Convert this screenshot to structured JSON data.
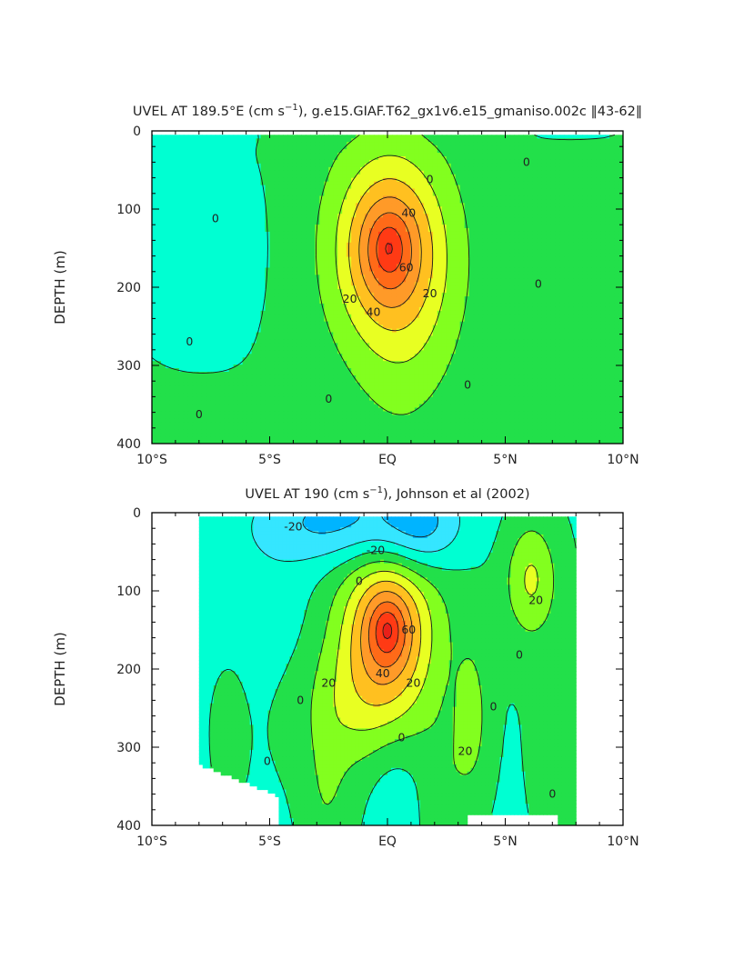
{
  "chart_data": [
    {
      "type": "contour",
      "title_parts": {
        "prefix": "UVEL AT 189.5°E (cm s",
        "sup": "−1",
        "suffix": "), g.e15.GIAF.T62_gx1v6.e15_gmaniso.002c ‖43-62‖"
      },
      "xlabel": "",
      "ylabel": "DEPTH (m)",
      "xlim": [
        -10,
        10
      ],
      "ylim": [
        400,
        0
      ],
      "xticks": [
        -10,
        -5,
        0,
        5,
        10
      ],
      "xtick_labels": [
        "10°S",
        "5°S",
        "EQ",
        "5°N",
        "10°N"
      ],
      "yticks": [
        0,
        100,
        200,
        300,
        400
      ],
      "ytick_labels": [
        "0",
        "100",
        "200",
        "300",
        "400"
      ],
      "contour_interval": 10,
      "data_extent": {
        "lon": [
          -10,
          10
        ],
        "depth": [
          5,
          400
        ]
      },
      "features": [
        {
          "kind": "undercurrent-core",
          "lon": 0.05,
          "depth": 150,
          "max": 68
        }
      ],
      "contour_labels": [
        {
          "text": "0",
          "lon": -7.3,
          "depth": 112
        },
        {
          "text": "0",
          "lon": 1.8,
          "depth": 62
        },
        {
          "text": "0",
          "lon": 5.9,
          "depth": 40
        },
        {
          "text": "0",
          "lon": 6.4,
          "depth": 196
        },
        {
          "text": "0",
          "lon": -2.5,
          "depth": 343
        },
        {
          "text": "0",
          "lon": -8.4,
          "depth": 270
        },
        {
          "text": "0",
          "lon": -8.0,
          "depth": 363
        },
        {
          "text": "0",
          "lon": 3.4,
          "depth": 325
        },
        {
          "text": "20",
          "lon": -1.6,
          "depth": 215
        },
        {
          "text": "20",
          "lon": 1.8,
          "depth": 208
        },
        {
          "text": "40",
          "lon": 0.9,
          "depth": 105
        },
        {
          "text": "40",
          "lon": -0.6,
          "depth": 232
        },
        {
          "text": "60",
          "lon": 0.8,
          "depth": 175
        }
      ]
    },
    {
      "type": "contour",
      "title_parts": {
        "prefix": "UVEL AT 190 (cm s",
        "sup": "−1",
        "suffix": "), Johnson et al (2002)"
      },
      "xlabel": "",
      "ylabel": "DEPTH (m)",
      "xlim": [
        -10,
        10
      ],
      "ylim": [
        400,
        0
      ],
      "xticks": [
        -10,
        -5,
        0,
        5,
        10
      ],
      "xtick_labels": [
        "10°S",
        "5°S",
        "EQ",
        "5°N",
        "10°N"
      ],
      "yticks": [
        0,
        100,
        200,
        300,
        400
      ],
      "ytick_labels": [
        "0",
        "100",
        "200",
        "300",
        "400"
      ],
      "contour_interval": 10,
      "data_extent": {
        "lon": [
          -8,
          8
        ],
        "depth": [
          5,
          400
        ]
      },
      "features": [
        {
          "kind": "undercurrent-core",
          "lon": 0.0,
          "depth": 150,
          "max": 74
        }
      ],
      "contour_labels": [
        {
          "text": "-20",
          "lon": -4.0,
          "depth": 18
        },
        {
          "text": "-20",
          "lon": -0.5,
          "depth": 48
        },
        {
          "text": "0",
          "lon": -1.2,
          "depth": 88
        },
        {
          "text": "0",
          "lon": -3.7,
          "depth": 240
        },
        {
          "text": "0",
          "lon": 4.5,
          "depth": 248
        },
        {
          "text": "0",
          "lon": 5.6,
          "depth": 182
        },
        {
          "text": "0",
          "lon": -5.1,
          "depth": 318
        },
        {
          "text": "0",
          "lon": 0.6,
          "depth": 288
        },
        {
          "text": "0",
          "lon": 7.0,
          "depth": 360
        },
        {
          "text": "20",
          "lon": -2.5,
          "depth": 218
        },
        {
          "text": "20",
          "lon": 1.1,
          "depth": 218
        },
        {
          "text": "20",
          "lon": 3.3,
          "depth": 305
        },
        {
          "text": "20",
          "lon": 6.3,
          "depth": 112
        },
        {
          "text": "40",
          "lon": -0.2,
          "depth": 206
        },
        {
          "text": "60",
          "lon": 0.9,
          "depth": 150
        }
      ]
    }
  ]
}
